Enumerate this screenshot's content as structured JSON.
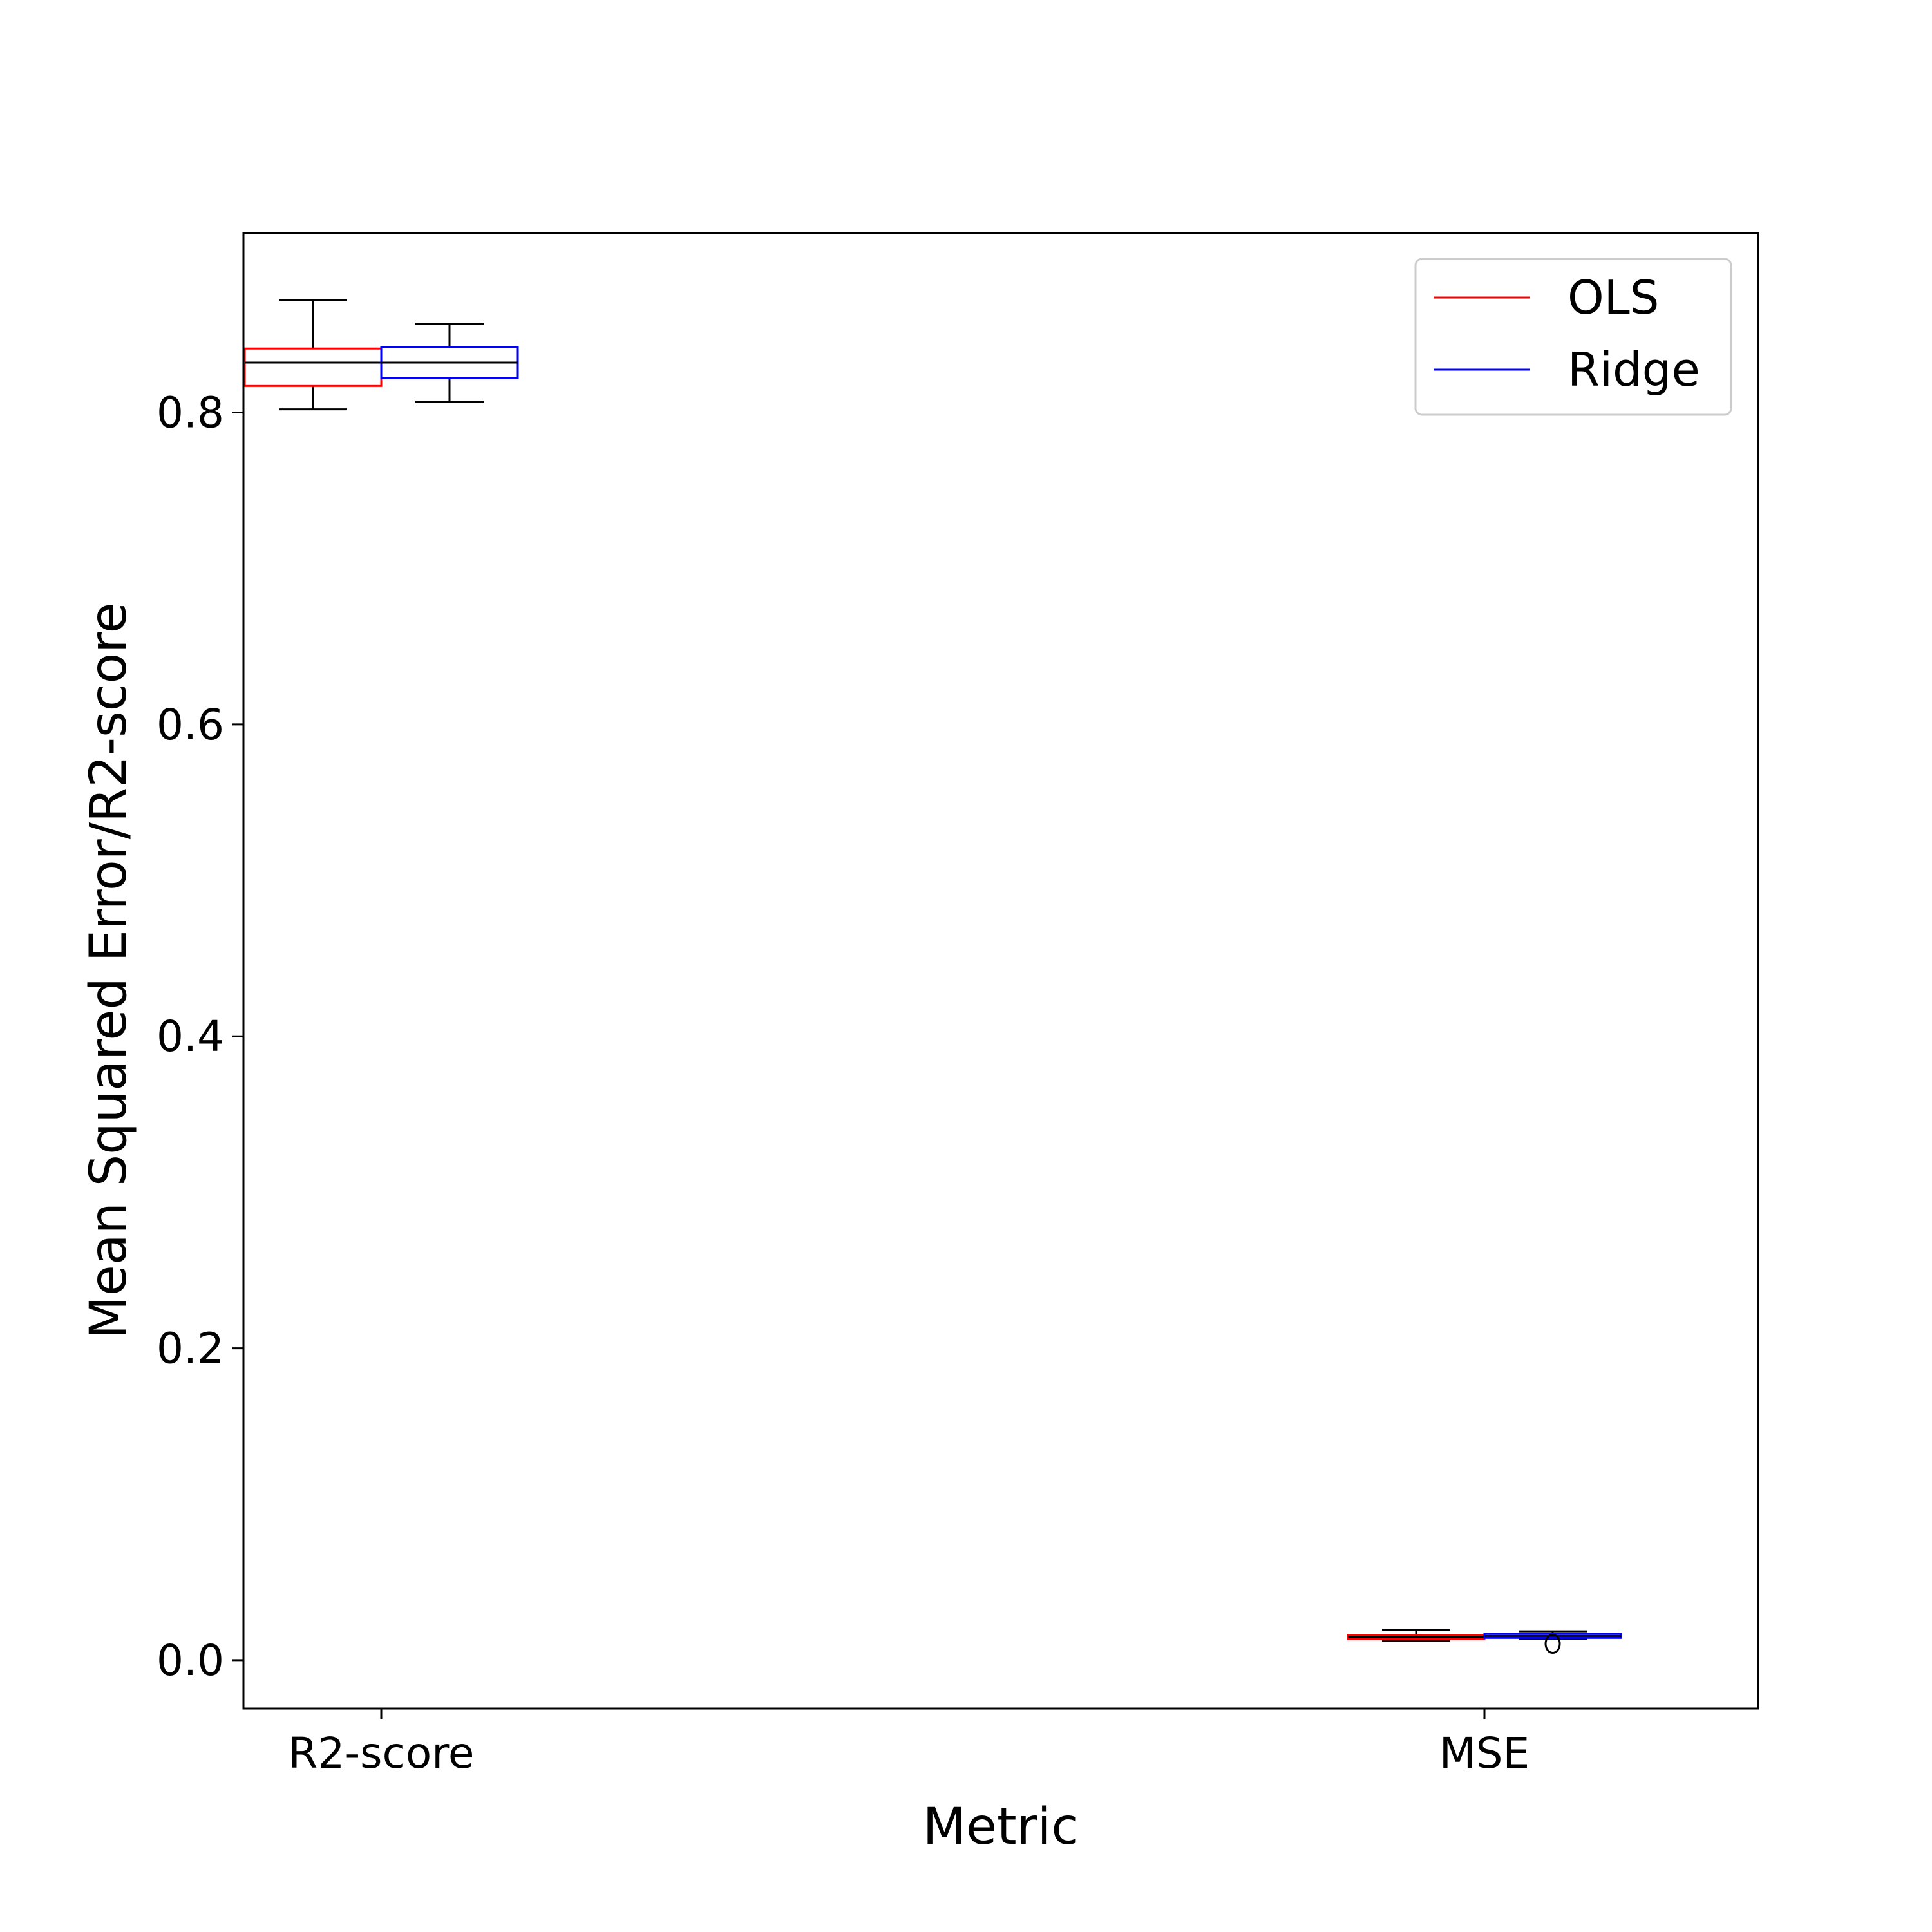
{
  "chart_data": {
    "type": "box",
    "title": "",
    "xlabel": "Metric",
    "ylabel": "Mean Squared Error/R2-score",
    "categories": [
      "R2-score",
      "MSE"
    ],
    "ylim": [
      -0.031,
      0.915
    ],
    "yticks": [
      0.0,
      0.2,
      0.4,
      0.6,
      0.8
    ],
    "ytick_labels": [
      "0.0",
      "0.2",
      "0.4",
      "0.6",
      "0.8"
    ],
    "grid": false,
    "legend": {
      "placement": "top-right",
      "entries": [
        "OLS",
        "Ridge"
      ]
    },
    "median_color": "#000000",
    "series": [
      {
        "name": "OLS",
        "color": "#ff0000",
        "boxes": [
          {
            "category": "R2-score",
            "whisker_low": 0.802,
            "q1": 0.817,
            "median": 0.832,
            "q3": 0.841,
            "whisker_high": 0.872,
            "outliers": []
          },
          {
            "category": "MSE",
            "whisker_low": 0.0125,
            "q1": 0.0135,
            "median": 0.0148,
            "q3": 0.0162,
            "whisker_high": 0.0195,
            "outliers": []
          }
        ]
      },
      {
        "name": "Ridge",
        "color": "#0000ff",
        "boxes": [
          {
            "category": "R2-score",
            "whisker_low": 0.807,
            "q1": 0.822,
            "median": 0.832,
            "q3": 0.842,
            "whisker_high": 0.857,
            "outliers": []
          },
          {
            "category": "MSE",
            "whisker_low": 0.0135,
            "q1": 0.0143,
            "median": 0.0155,
            "q3": 0.0168,
            "whisker_high": 0.0185,
            "outliers": [
              0.0105
            ]
          }
        ]
      }
    ]
  }
}
